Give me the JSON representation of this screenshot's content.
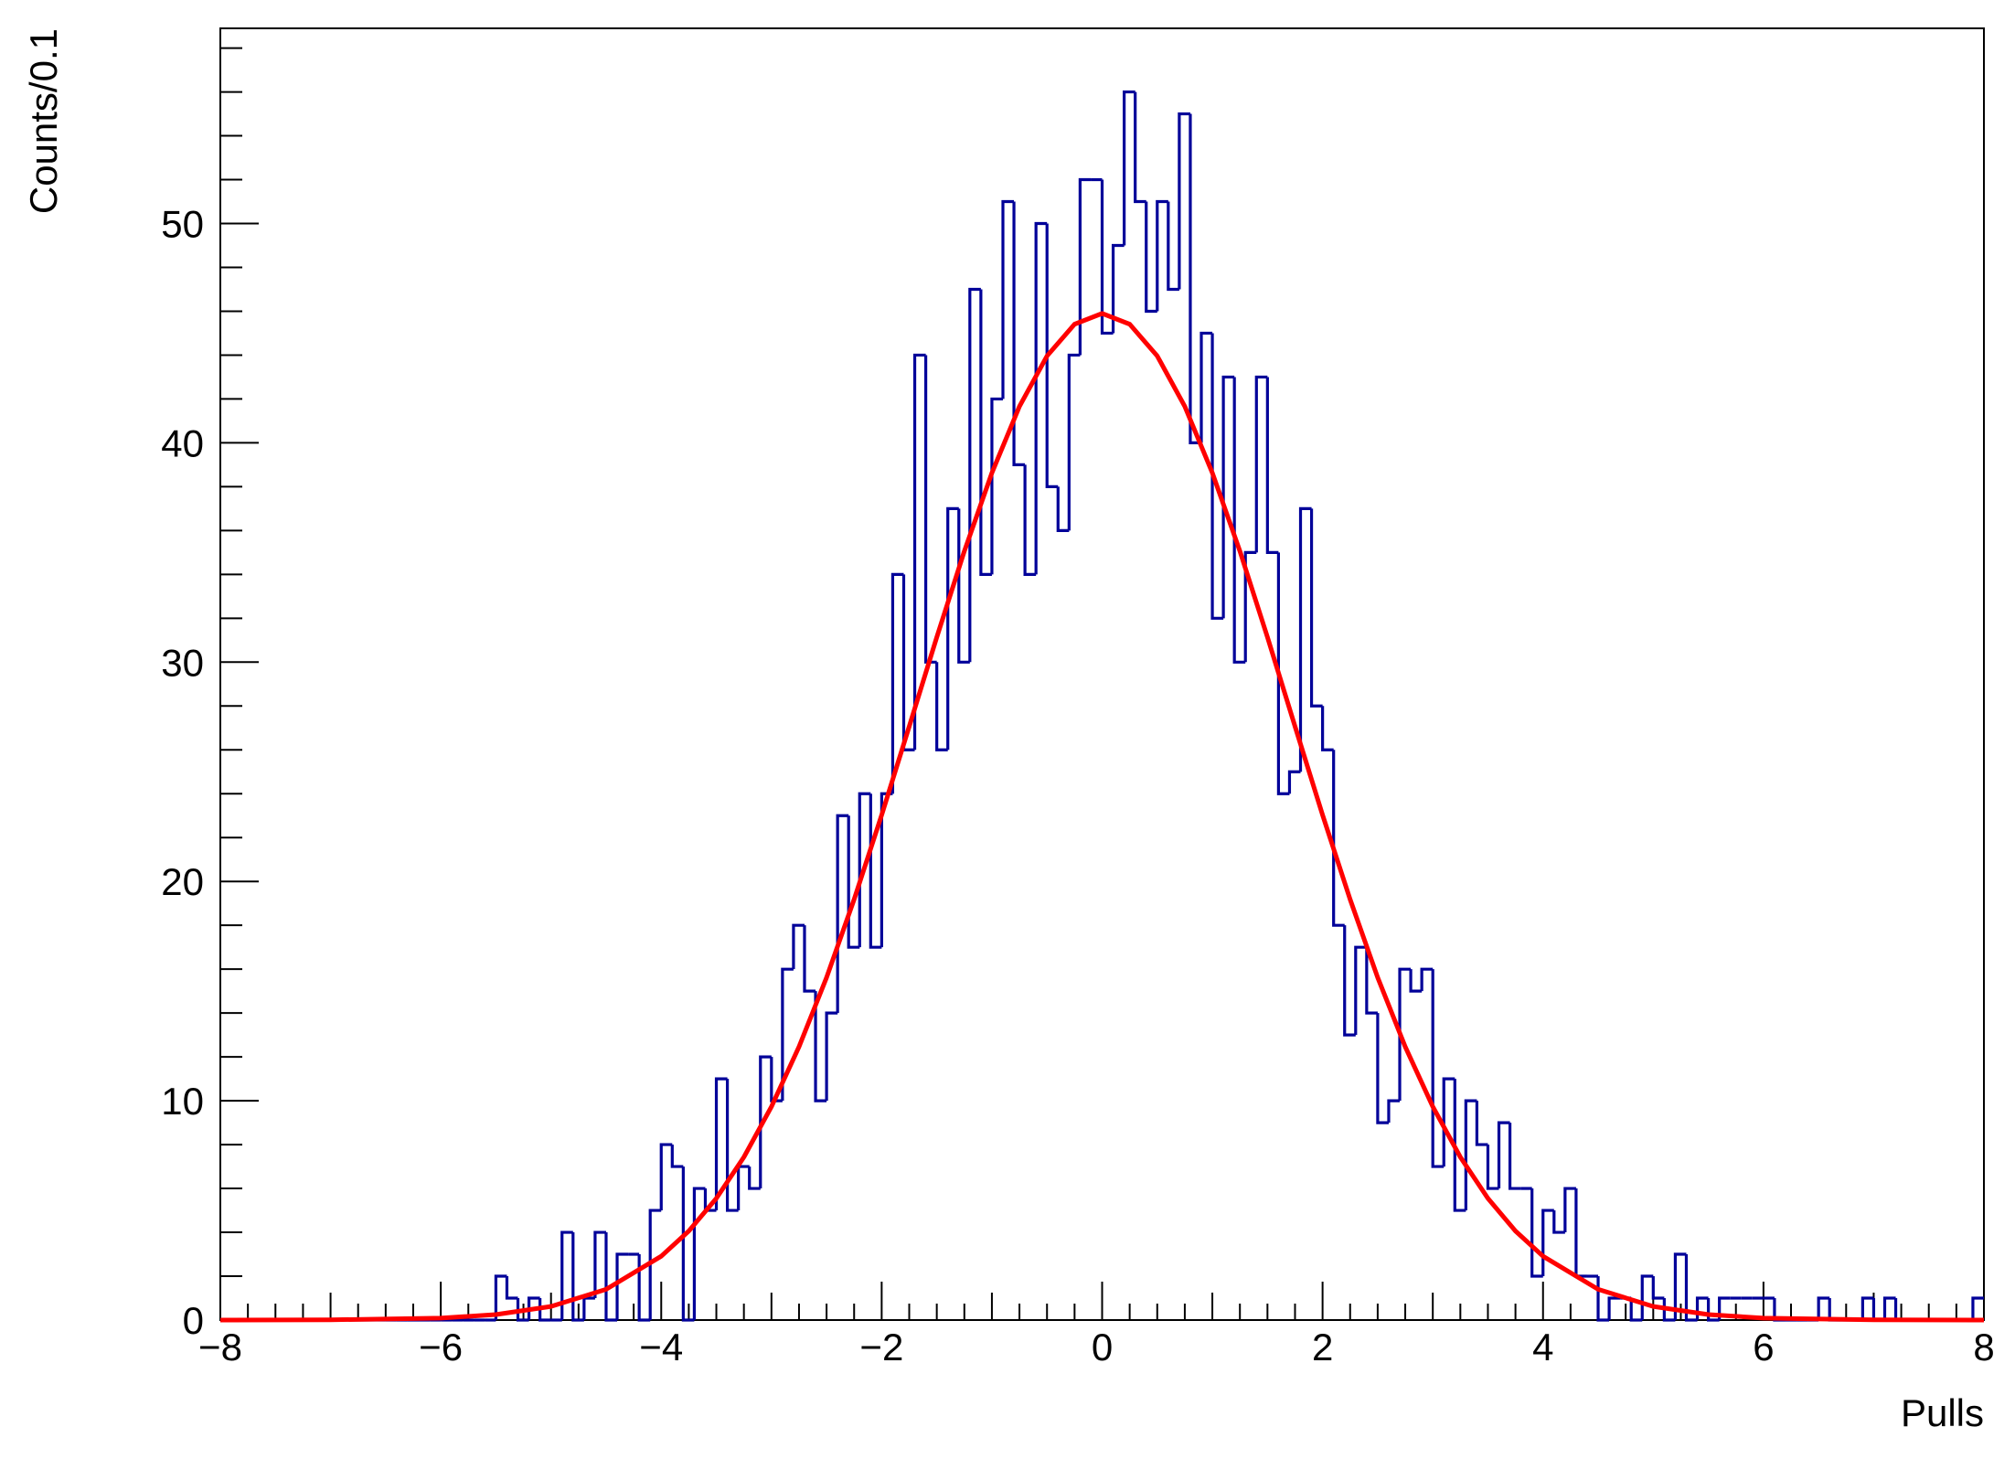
{
  "chart_data": {
    "type": "histogram",
    "xlabel": "Pulls",
    "ylabel": "Counts/0.1",
    "color": "#000099",
    "xlim": [
      -8,
      8
    ],
    "ylim": [
      0,
      58.9
    ],
    "xticks": [
      {
        "value": -8,
        "label": "−8"
      },
      {
        "value": -6,
        "label": "−6"
      },
      {
        "value": -4,
        "label": "−4"
      },
      {
        "value": -2,
        "label": "−2"
      },
      0,
      2,
      4,
      6,
      8
    ],
    "yticks": [
      0,
      10,
      20,
      30,
      40,
      50
    ],
    "bins": [
      -8,
      -7.9,
      -7.8,
      -7.7,
      -7.6,
      -7.5,
      -7.4,
      -7.3,
      -7.2,
      -7.1,
      -7,
      -6.9,
      -6.8,
      -6.7,
      -6.6,
      -6.5,
      -6.4,
      -6.3,
      -6.2,
      -6.1,
      -6,
      -5.9,
      -5.8,
      -5.7,
      -5.6,
      -5.5,
      -5.4,
      -5.3,
      -5.2,
      -5.1,
      -5,
      -4.9,
      -4.8,
      -4.7,
      -4.6,
      -4.5,
      -4.4,
      -4.3,
      -4.2,
      -4.1,
      -4,
      -3.9,
      -3.8,
      -3.7,
      -3.6,
      -3.5,
      -3.4,
      -3.3,
      -3.2,
      -3.1,
      -3,
      -2.9,
      -2.8,
      -2.7,
      -2.6,
      -2.5,
      -2.4,
      -2.3,
      -2.2,
      -2.1,
      -2,
      -1.9,
      -1.8,
      -1.7,
      -1.6,
      -1.5,
      -1.4,
      -1.3,
      -1.2,
      -1.1,
      -1,
      -0.9,
      -0.8,
      -0.7,
      -0.6,
      -0.5,
      -0.4,
      -0.3,
      -0.2,
      -0.1,
      0,
      0.1,
      0.2,
      0.3,
      0.4,
      0.5,
      0.6,
      0.7,
      0.8,
      0.9,
      1,
      1.1,
      1.2,
      1.3,
      1.4,
      1.5,
      1.6,
      1.7,
      1.8,
      1.9,
      2,
      2.1,
      2.2,
      2.3,
      2.4,
      2.5,
      2.6,
      2.7,
      2.8,
      2.9,
      3,
      3.1,
      3.2,
      3.3,
      3.4,
      3.5,
      3.6,
      3.7,
      3.8,
      3.9,
      4,
      4.1,
      4.2,
      4.3,
      4.4,
      4.5,
      4.6,
      4.7,
      4.8,
      4.9,
      5,
      5.1,
      5.2,
      5.3,
      5.4,
      5.5,
      5.6,
      5.7,
      5.8,
      5.9,
      6,
      6.1,
      6.2,
      6.3,
      6.4,
      6.5,
      6.6,
      6.7,
      6.8,
      6.9,
      7,
      7.1,
      7.2,
      7.3,
      7.4,
      7.5,
      7.6,
      7.7,
      7.8,
      7.9,
      8
    ],
    "values": [
      0,
      0,
      0,
      0,
      0,
      0,
      0,
      0,
      0,
      0,
      0,
      0,
      0,
      0,
      0,
      0,
      0,
      0,
      0,
      0,
      0,
      0,
      0,
      0,
      0,
      2,
      1,
      0,
      1,
      0,
      0,
      4,
      0,
      1,
      4,
      0,
      3,
      3,
      0,
      5,
      8,
      7,
      0,
      6,
      5,
      11,
      5,
      7,
      6,
      12,
      10,
      16,
      18,
      15,
      10,
      14,
      23,
      17,
      24,
      17,
      24,
      34,
      26,
      44,
      30,
      26,
      37,
      30,
      47,
      34,
      42,
      51,
      39,
      34,
      50,
      38,
      36,
      44,
      52,
      52,
      45,
      49,
      56,
      51,
      46,
      51,
      47,
      55,
      40,
      45,
      32,
      43,
      30,
      35,
      43,
      35,
      24,
      25,
      37,
      28,
      26,
      18,
      13,
      17,
      14,
      9,
      10,
      16,
      15,
      16,
      7,
      11,
      5,
      10,
      8,
      6,
      9,
      6,
      6,
      2,
      5,
      4,
      6,
      2,
      2,
      0,
      1,
      1,
      0,
      2,
      1,
      0,
      3,
      0,
      1,
      0,
      1,
      1,
      1,
      1,
      1,
      0,
      0,
      0,
      0,
      1,
      0,
      0,
      0,
      1,
      0,
      1,
      0,
      0,
      0,
      0,
      0,
      0,
      0,
      1
    ],
    "overlay": {
      "type": "line",
      "color": "#ff0000",
      "x": [
        -8,
        -7,
        -6,
        -5.5,
        -5,
        -4.5,
        -4,
        -3.75,
        -3.5,
        -3.25,
        -3,
        -2.75,
        -2.5,
        -2.25,
        -2,
        -1.75,
        -1.5,
        -1.25,
        -1,
        -0.75,
        -0.5,
        -0.25,
        0,
        0.25,
        0.5,
        0.75,
        1,
        1.25,
        1.5,
        1.75,
        2,
        2.25,
        2.5,
        2.75,
        3,
        3.25,
        3.5,
        3.75,
        4,
        4.5,
        5,
        5.5,
        6,
        7,
        8
      ],
      "values": [
        0,
        0.01,
        0.09,
        0.25,
        0.62,
        1.4,
        2.91,
        4.06,
        5.55,
        7.43,
        9.73,
        12.46,
        15.62,
        19.18,
        23.03,
        27.07,
        31.14,
        35.06,
        38.63,
        41.66,
        43.96,
        45.41,
        45.9,
        45.41,
        43.96,
        41.66,
        38.63,
        35.06,
        31.14,
        27.07,
        23.03,
        19.18,
        15.62,
        12.46,
        9.73,
        7.43,
        5.55,
        4.06,
        2.91,
        1.4,
        0.62,
        0.25,
        0.09,
        0.01,
        0
      ]
    }
  }
}
